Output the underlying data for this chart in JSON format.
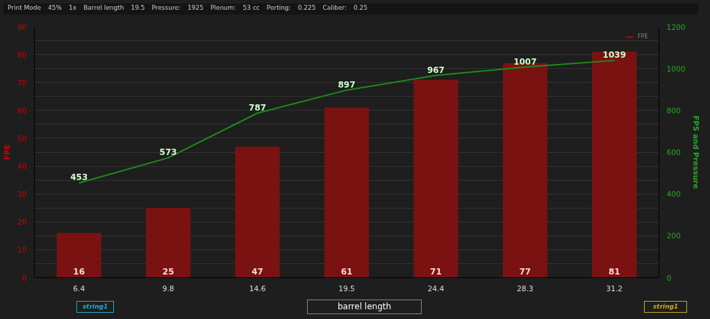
{
  "chart_data": {
    "type": "bar",
    "categories": [
      "6.4",
      "9.8",
      "14.6",
      "19.5",
      "24.4",
      "28.3",
      "31.2"
    ],
    "series": [
      {
        "name": "FPE",
        "color": "#7a1212",
        "values": [
          16,
          25,
          47,
          61,
          71,
          77,
          81
        ]
      },
      {
        "type": "line",
        "axis": "y2",
        "color": "#1c8c1c",
        "values": [
          453,
          573,
          787,
          897,
          967,
          1007,
          1039
        ]
      }
    ],
    "ylim": [
      0,
      90
    ],
    "yticks": [
      0,
      {
        "value": 5,
        "label": null
      },
      10,
      {
        "value": 15,
        "label": null
      },
      20,
      {
        "value": 25,
        "label": null
      },
      30,
      {
        "value": 35,
        "label": null
      },
      40,
      {
        "value": 45,
        "label": null
      },
      50,
      {
        "value": 55,
        "label": null
      },
      60,
      {
        "value": 65,
        "label": null
      },
      70,
      {
        "value": 75,
        "label": null
      },
      80,
      {
        "value": 85,
        "label": null
      },
      90
    ],
    "y2lim": [
      0,
      1200
    ],
    "y2ticks": [
      0,
      200,
      400,
      600,
      800,
      1000,
      1200
    ],
    "ylabel": "FPE",
    "y2label": "FPS and Pressure",
    "xlabel": "barrel length",
    "data_labels": true,
    "legend": "top right",
    "grid": "y",
    "marker": "none",
    "annotations": [
      "Print Mode",
      "45%",
      "1x",
      "Barrel length",
      "19.5",
      "Pressure:",
      "1925",
      "Plenum:",
      "53 cc",
      "Porting:",
      "0.225",
      "Caliber:",
      "0.25",
      "string1",
      "string1"
    ]
  }
}
